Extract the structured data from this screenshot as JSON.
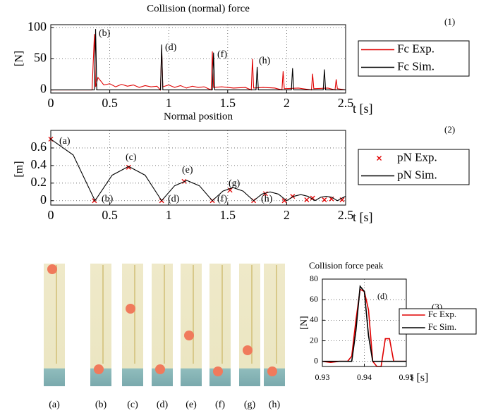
{
  "chart_data": [
    {
      "type": "line",
      "title": "Collision (normal) force",
      "tag": "(1)",
      "x_label": "t [s]",
      "y_label": "[N]",
      "xlim": [
        0,
        2.5
      ],
      "xticks": [
        0,
        0.5,
        1,
        1.5,
        2,
        2.5
      ],
      "ylim": [
        -5,
        105
      ],
      "yticks": [
        0,
        50,
        100
      ],
      "grid": true,
      "annotations": [
        "(b)",
        "(d)",
        "(f)",
        "(h)"
      ],
      "series": [
        {
          "name": "Fc Exp.",
          "color": "#e00000",
          "mode": "lines",
          "x": [
            0,
            0.35,
            0.37,
            0.38,
            0.4,
            0.45,
            0.5,
            0.55,
            0.6,
            0.65,
            0.7,
            0.75,
            0.8,
            0.85,
            0.9,
            0.93,
            0.94,
            0.95,
            1.0,
            1.05,
            1.1,
            1.15,
            1.2,
            1.25,
            1.3,
            1.36,
            1.37,
            1.38,
            1.45,
            1.55,
            1.65,
            1.7,
            1.71,
            1.72,
            1.8,
            1.9,
            1.96,
            1.97,
            1.98,
            2.1,
            2.21,
            2.22,
            2.23,
            2.35,
            2.41,
            2.42,
            2.43,
            2.5
          ],
          "values": [
            0,
            0,
            90,
            5,
            20,
            8,
            10,
            5,
            9,
            6,
            8,
            4,
            7,
            5,
            6,
            0,
            67,
            5,
            8,
            4,
            7,
            3,
            6,
            4,
            5,
            0,
            62,
            4,
            5,
            3,
            4,
            0,
            50,
            3,
            4,
            3,
            0,
            30,
            2,
            3,
            0,
            26,
            2,
            3,
            0,
            17,
            2,
            0
          ]
        },
        {
          "name": "Fc Sim.",
          "color": "#000000",
          "mode": "lines",
          "x": [
            0,
            0.37,
            0.38,
            0.39,
            0.93,
            0.94,
            0.95,
            1.37,
            1.38,
            1.39,
            1.74,
            1.75,
            1.76,
            2.04,
            2.05,
            2.06,
            2.31,
            2.32,
            2.33,
            2.5
          ],
          "values": [
            0,
            0,
            98,
            0,
            0,
            73,
            0,
            0,
            60,
            0,
            0,
            37,
            0,
            0,
            35,
            0,
            0,
            33,
            0,
            0
          ]
        }
      ]
    },
    {
      "type": "line",
      "title": "Normal position",
      "tag": "(2)",
      "x_label": "t [s]",
      "y_label": "[m]",
      "xlim": [
        0,
        2.5
      ],
      "xticks": [
        0,
        0.5,
        1,
        1.5,
        2,
        2.5
      ],
      "ylim": [
        -0.05,
        0.8
      ],
      "yticks": [
        0,
        0.2,
        0.4,
        0.6
      ],
      "grid": true,
      "annotations": [
        "(a)",
        "(b)",
        "(c)",
        "(d)",
        "(e)",
        "(f)",
        "(g)",
        "(h)"
      ],
      "series": [
        {
          "name": "pN Exp.",
          "color": "#e00000",
          "mode": "markers",
          "x": [
            0,
            0.37,
            0.66,
            0.94,
            1.13,
            1.37,
            1.52,
            1.72,
            1.82,
            1.98,
            2.05,
            2.17,
            2.22,
            2.32,
            2.38,
            2.47
          ],
          "values": [
            0.7,
            0,
            0.38,
            0,
            0.22,
            0,
            0.12,
            0,
            0.08,
            0,
            0.05,
            0.01,
            0.03,
            0.01,
            0.02,
            0.01
          ]
        },
        {
          "name": "pN Sim.",
          "color": "#000000",
          "mode": "lines",
          "x": [
            0,
            0.19,
            0.375,
            0.52,
            0.66,
            0.8,
            0.94,
            1.05,
            1.155,
            1.26,
            1.37,
            1.46,
            1.545,
            1.63,
            1.72,
            1.79,
            1.86,
            1.93,
            2.0,
            2.06,
            2.12,
            2.18,
            2.24,
            2.29,
            2.335,
            2.38,
            2.43,
            2.47,
            2.5
          ],
          "values": [
            0.7,
            0.52,
            0,
            0.29,
            0.39,
            0.29,
            0,
            0.17,
            0.23,
            0.17,
            0,
            0.11,
            0.15,
            0.11,
            0,
            0.075,
            0.1,
            0.075,
            0,
            0.05,
            0.07,
            0.05,
            0,
            0.04,
            0.05,
            0.04,
            0,
            0.03,
            0.05
          ]
        }
      ]
    },
    {
      "type": "line",
      "title": "Collision force peak",
      "tag": "(3)",
      "x_label": "t [s]",
      "y_label": "[N]",
      "xlim": [
        0.93,
        0.95
      ],
      "xticks": [
        0.93,
        0.94,
        0.95
      ],
      "ylim": [
        -5,
        80
      ],
      "yticks": [
        0,
        20,
        40,
        60,
        80
      ],
      "grid": true,
      "annotations": [
        "(d)"
      ],
      "series": [
        {
          "name": "Fc Exp.",
          "color": "#e00000",
          "mode": "lines",
          "x": [
            0.93,
            0.932,
            0.934,
            0.936,
            0.937,
            0.938,
            0.939,
            0.94,
            0.941,
            0.942,
            0.943,
            0.944,
            0.945,
            0.946,
            0.947,
            0.948,
            0.95
          ],
          "values": [
            0,
            -1,
            0,
            0,
            5,
            40,
            70,
            68,
            50,
            0,
            -5,
            -5,
            22,
            22,
            0,
            0,
            0
          ]
        },
        {
          "name": "Fc Sim.",
          "color": "#000000",
          "mode": "lines",
          "x": [
            0.93,
            0.935,
            0.937,
            0.938,
            0.939,
            0.94,
            0.941,
            0.942,
            0.95
          ],
          "values": [
            0,
            0,
            0,
            30,
            73,
            68,
            25,
            0,
            0
          ]
        }
      ]
    }
  ],
  "photos": {
    "labels": [
      "(a)",
      "(b)",
      "(c)",
      "(d)",
      "(e)",
      "(f)",
      "(g)",
      "(h)"
    ]
  }
}
